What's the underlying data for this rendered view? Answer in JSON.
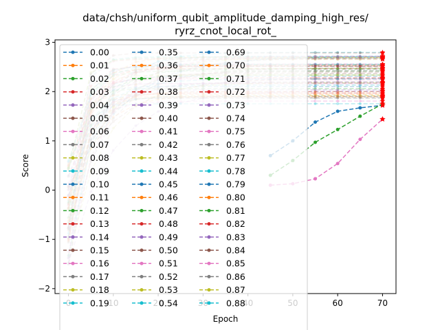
{
  "chart_data": {
    "type": "line",
    "title_line1": "data/chsh/uniform_qubit_amplitude_damping_high_res/",
    "title_line2": "ryrz_cnot_local_rot_",
    "xlabel": "Epoch",
    "ylabel": "Score",
    "xlim": [
      -3,
      73
    ],
    "ylim": [
      -2.1,
      3.05
    ],
    "xticks": [
      "0",
      "10",
      "20",
      "30",
      "40",
      "50",
      "60",
      "70"
    ],
    "yticks": [
      "−2",
      "−1",
      "0",
      "1",
      "2",
      "3"
    ],
    "grid": false,
    "legend_position": "upper-left (over plot, extends below axes)",
    "legend_columns": 3,
    "series_names": [
      "0.00",
      "0.01",
      "0.02",
      "0.03",
      "0.04",
      "0.05",
      "0.06",
      "0.07",
      "0.08",
      "0.09",
      "0.10",
      "0.11",
      "0.12",
      "0.13",
      "0.14",
      "0.15",
      "0.16",
      "0.17",
      "0.18",
      "0.19",
      "0.35",
      "0.36",
      "0.37",
      "0.38",
      "0.39",
      "0.40",
      "0.41",
      "0.42",
      "0.43",
      "0.44",
      "0.45",
      "0.46",
      "0.47",
      "0.48",
      "0.49",
      "0.50",
      "0.51",
      "0.52",
      "0.53",
      "0.54",
      "0.69",
      "0.70",
      "0.71",
      "0.72",
      "0.73",
      "0.74",
      "0.75",
      "0.76",
      "0.77",
      "0.78",
      "0.79",
      "0.80",
      "0.81",
      "0.82",
      "0.83",
      "0.84",
      "0.85",
      "0.86",
      "0.87",
      "0.88"
    ],
    "highlighted_series": [
      {
        "color": "#1f77b4",
        "x": [
          0,
          5,
          10,
          15,
          20,
          25,
          30,
          35,
          40,
          45,
          50,
          55,
          60,
          65,
          70
        ],
        "y": [
          0.0,
          -0.05,
          -0.1,
          -0.08,
          -0.05,
          0.0,
          0.05,
          0.3,
          0.45,
          0.7,
          1.0,
          1.38,
          1.6,
          1.67,
          1.72
        ]
      },
      {
        "color": "#2ca02c",
        "x": [
          0,
          5,
          10,
          15,
          20,
          25,
          30,
          35,
          40,
          45,
          50,
          55,
          60,
          65,
          70
        ],
        "y": [
          0.0,
          -0.05,
          -0.1,
          -0.08,
          -0.05,
          0.0,
          0.0,
          0.05,
          0.1,
          0.3,
          0.6,
          0.97,
          1.23,
          1.5,
          1.75
        ]
      },
      {
        "color": "#e377c2",
        "x": [
          0,
          5,
          10,
          15,
          20,
          25,
          30,
          35,
          40,
          45,
          50,
          55,
          60,
          65,
          70
        ],
        "y": [
          -1.8,
          -0.3,
          -0.1,
          -0.05,
          0.0,
          0.0,
          0.02,
          0.05,
          0.08,
          0.1,
          0.13,
          0.23,
          0.54,
          1.03,
          1.44
        ]
      }
    ],
    "final_scores_range": [
      1.75,
      2.8
    ],
    "final_marker": "red star"
  },
  "colors": {
    "tab10": [
      "#1f77b4",
      "#ff7f0e",
      "#2ca02c",
      "#d62728",
      "#9467bd",
      "#8c564b",
      "#e377c2",
      "#7f7f7f",
      "#bcbd22",
      "#17becf"
    ],
    "final_marker": "#ff0000"
  }
}
